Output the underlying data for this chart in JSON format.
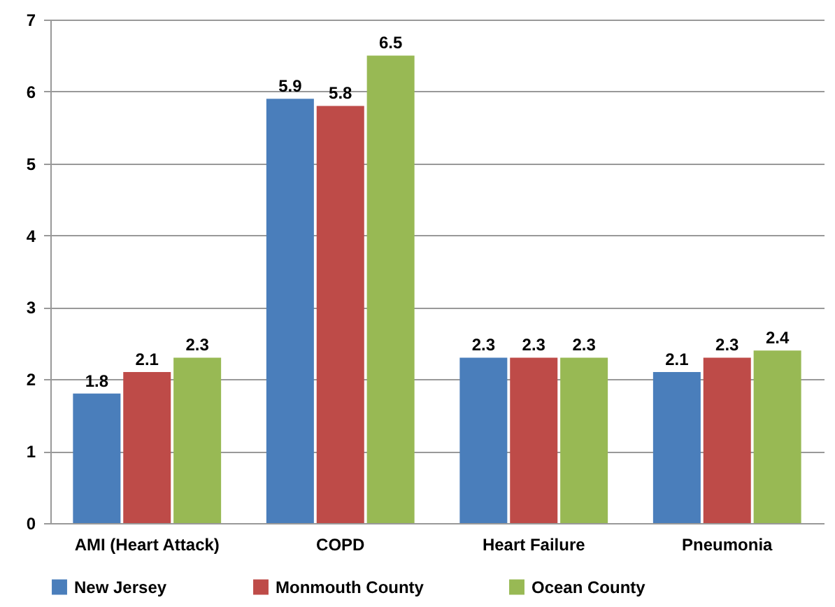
{
  "chart_data": {
    "type": "bar",
    "categories": [
      "AMI (Heart Attack)",
      "COPD",
      "Heart Failure",
      "Pneumonia"
    ],
    "series": [
      {
        "name": "New Jersey",
        "color": "#4a7ebb",
        "values": [
          1.8,
          5.9,
          2.3,
          2.1
        ]
      },
      {
        "name": "Monmouth County",
        "color": "#be4b48",
        "values": [
          2.1,
          5.8,
          2.3,
          2.3
        ]
      },
      {
        "name": "Ocean County",
        "color": "#98b954",
        "values": [
          2.3,
          6.5,
          2.3,
          2.4
        ]
      }
    ],
    "ylim": [
      0,
      7
    ],
    "yticks": [
      0,
      1,
      2,
      3,
      4,
      5,
      6,
      7
    ],
    "grid": "y",
    "legend": "bottom",
    "data_labels": true
  }
}
